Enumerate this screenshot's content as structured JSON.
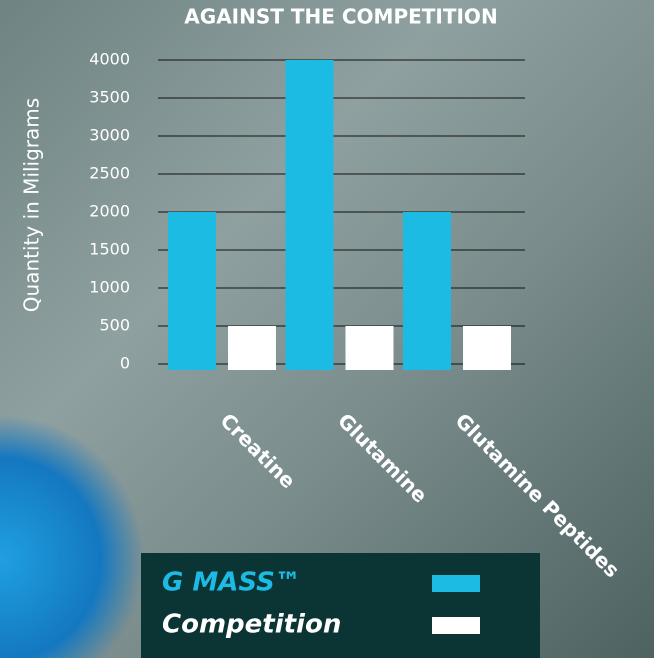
{
  "chart_data": {
    "type": "bar",
    "title": "AGAINST THE COMPETITION",
    "y_label": "Quantity in Miligrams",
    "categories": [
      "Creatine",
      "Glutamine",
      "Glutamine Peptides"
    ],
    "series": [
      {
        "name": "G MASS™",
        "color": "#1bbbe4",
        "values": [
          2000,
          4000,
          2000
        ]
      },
      {
        "name": "Competition",
        "color": "#ffffff",
        "values": [
          500,
          500,
          500
        ]
      }
    ],
    "ylim": [
      0,
      4000
    ],
    "yticks": [
      0,
      500,
      1000,
      1500,
      2000,
      2500,
      3000,
      3500,
      4000
    ],
    "grid": true
  }
}
